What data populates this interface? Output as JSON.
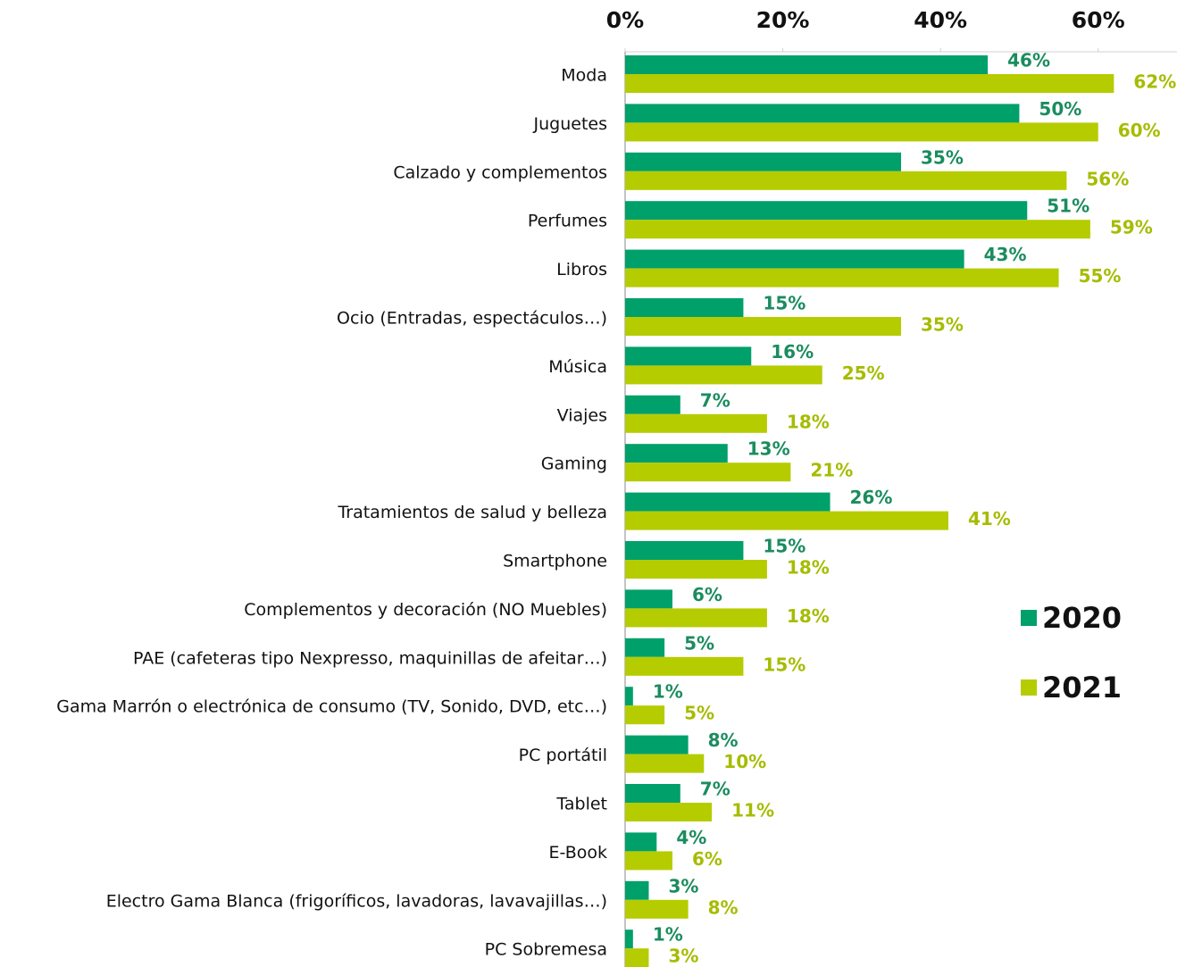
{
  "chart_data": {
    "type": "bar",
    "orientation": "horizontal",
    "categories": [
      "Moda",
      "Juguetes",
      "Calzado y complementos",
      "Perfumes",
      "Libros",
      "Ocio (Entradas, espectáculos…)",
      "Música",
      "Viajes",
      "Gaming",
      "Tratamientos de salud y belleza",
      "Smartphone",
      "Complementos y decoración (NO Muebles)",
      "PAE (cafeteras tipo Nexpresso, maquinillas de afeitar…)",
      "Gama Marrón o electrónica de consumo (TV, Sonido, DVD, etc…)",
      "PC portátil",
      "Tablet",
      "E-Book",
      "Electro Gama Blanca (frigoríficos, lavadoras, lavavajillas…)",
      "PC Sobremesa"
    ],
    "series": [
      {
        "name": "2020",
        "color": "#00a06a",
        "label_color": "#1b8c5f",
        "values": [
          46,
          50,
          35,
          51,
          43,
          15,
          16,
          7,
          13,
          26,
          15,
          6,
          5,
          1,
          8,
          7,
          4,
          3,
          1
        ],
        "value_labels": [
          "46%",
          "50%",
          "35%",
          "51%",
          "43%",
          "15%",
          "16%",
          "7%",
          "13%",
          "26%",
          "15%",
          "6%",
          "5%",
          "1%",
          "8%",
          "7%",
          "4%",
          "3%",
          "1%"
        ]
      },
      {
        "name": "2021",
        "color": "#b5cc00",
        "label_color": "#a6bc00",
        "values": [
          62,
          60,
          56,
          59,
          55,
          35,
          25,
          18,
          21,
          41,
          18,
          18,
          15,
          5,
          10,
          11,
          6,
          8,
          3
        ],
        "value_labels": [
          "62%",
          "60%",
          "56%",
          "59%",
          "55%",
          "35%",
          "25%",
          "18%",
          "21%",
          "41%",
          "18%",
          "18%",
          "15%",
          "5%",
          "10%",
          "11%",
          "6%",
          "8%",
          "3%"
        ]
      }
    ],
    "xlim": [
      0,
      70
    ],
    "xticks": [
      {
        "value": 0,
        "label": "0%"
      },
      {
        "value": 20,
        "label": "20%"
      },
      {
        "value": 40,
        "label": "40%"
      },
      {
        "value": 60,
        "label": "60%"
      }
    ],
    "grid": false,
    "legend": "right"
  }
}
